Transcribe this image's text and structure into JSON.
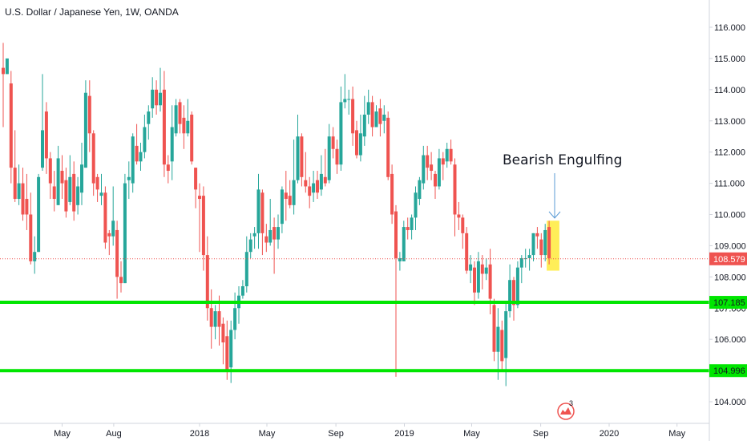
{
  "header": {
    "title": "U.S. Dollar / Japanese Yen, 1W, OANDA"
  },
  "colors": {
    "bull": "#26a69a",
    "bear": "#ef5350",
    "support": "#00e600",
    "highlight": "#ffeb3b",
    "current": "#ef5350",
    "grid": "#e0e3eb"
  },
  "annotations": {
    "pattern_label": "Bearish Engulfing",
    "logo_badge": "3"
  },
  "chart_data": {
    "type": "candlestick",
    "title": "U.S. Dollar / Japanese Yen, 1W, OANDA",
    "xlabel": "",
    "ylabel": "",
    "ylim": [
      103.3,
      116.8
    ],
    "grid": false,
    "y_ticks": [
      "116.000",
      "115.000",
      "114.000",
      "113.000",
      "112.000",
      "111.000",
      "110.000",
      "109.000",
      "108.000",
      "107.000",
      "106.000",
      "105.000",
      "104.000"
    ],
    "x_ticks": [
      {
        "label": "May",
        "date": "2017-05"
      },
      {
        "label": "Aug",
        "date": "2017-08"
      },
      {
        "label": "2018",
        "date": "2018-01"
      },
      {
        "label": "May",
        "date": "2018-05"
      },
      {
        "label": "Sep",
        "date": "2018-09"
      },
      {
        "label": "2019",
        "date": "2019-01"
      },
      {
        "label": "May",
        "date": "2019-05"
      },
      {
        "label": "Sep",
        "date": "2019-09"
      },
      {
        "label": "2020",
        "date": "2020-01"
      },
      {
        "label": "May",
        "date": "2020-05"
      }
    ],
    "current_price": {
      "value": 108.579,
      "label": "108.579"
    },
    "support_lines": [
      {
        "value": 107.185,
        "label": "107.185"
      },
      {
        "value": 104.996,
        "label": "104.996"
      }
    ],
    "highlight_box": {
      "from_index": 139,
      "to_index": 141,
      "low": 108.2,
      "high": 109.8
    },
    "candles": [
      [
        114.7,
        114.5,
        115.5,
        112.8
      ],
      [
        114.5,
        115.0,
        115.0,
        114.5
      ],
      [
        114.2,
        111.5,
        114.6,
        111.0
      ],
      [
        111.5,
        110.5,
        112.7,
        110.4
      ],
      [
        110.5,
        111.0,
        111.6,
        110.3
      ],
      [
        111.0,
        110.0,
        111.5,
        109.8
      ],
      [
        110.5,
        110.0,
        111.3,
        109.5
      ],
      [
        110.0,
        108.5,
        110.7,
        108.4
      ],
      [
        108.5,
        108.8,
        109.3,
        108.1
      ],
      [
        108.8,
        111.2,
        111.3,
        108.8
      ],
      [
        111.5,
        112.7,
        114.5,
        111.4
      ],
      [
        113.3,
        111.8,
        113.6,
        111.3
      ],
      [
        111.8,
        111.0,
        112.0,
        110.5
      ],
      [
        110.9,
        110.5,
        111.4,
        110.1
      ],
      [
        110.3,
        111.8,
        112.2,
        110.3
      ],
      [
        111.4,
        111.0,
        111.9,
        110.5
      ],
      [
        111.1,
        110.1,
        111.5,
        109.9
      ],
      [
        110.4,
        111.2,
        111.9,
        110.3
      ],
      [
        111.3,
        110.1,
        111.7,
        109.8
      ],
      [
        110.3,
        110.9,
        111.2,
        110.0
      ],
      [
        110.7,
        111.6,
        112.3,
        110.3
      ],
      [
        111.5,
        113.9,
        114.3,
        111.5
      ],
      [
        113.8,
        112.6,
        114.3,
        112.0
      ],
      [
        112.6,
        111.0,
        112.7,
        110.6
      ],
      [
        111.2,
        110.8,
        111.3,
        110.4
      ],
      [
        110.6,
        110.7,
        111.3,
        110.3
      ],
      [
        110.7,
        109.1,
        110.9,
        108.9
      ],
      [
        109.4,
        109.3,
        109.5,
        108.7
      ],
      [
        109.3,
        109.8,
        110.9,
        109.0
      ],
      [
        109.5,
        108.0,
        109.8,
        107.3
      ],
      [
        108.0,
        107.8,
        108.5,
        107.5
      ],
      [
        107.8,
        111.0,
        111.3,
        107.8
      ],
      [
        111.1,
        111.2,
        111.7,
        110.5
      ],
      [
        111.0,
        112.5,
        112.6,
        110.7
      ],
      [
        112.2,
        111.7,
        112.9,
        111.6
      ],
      [
        111.7,
        112.0,
        112.3,
        111.4
      ],
      [
        112.0,
        112.8,
        113.2,
        111.8
      ],
      [
        112.9,
        113.3,
        113.5,
        112.4
      ],
      [
        113.4,
        114.0,
        114.4,
        113.1
      ],
      [
        114.0,
        113.5,
        114.3,
        113.2
      ],
      [
        113.5,
        113.9,
        114.7,
        113.3
      ],
      [
        114.0,
        111.6,
        114.6,
        111.2
      ],
      [
        111.6,
        111.4,
        111.9,
        111.0
      ],
      [
        111.7,
        112.8,
        113.5,
        111.1
      ],
      [
        112.6,
        113.5,
        113.7,
        112.5
      ],
      [
        113.6,
        112.9,
        113.7,
        112.6
      ],
      [
        113.1,
        112.6,
        113.5,
        112.1
      ],
      [
        112.6,
        113.0,
        113.7,
        112.5
      ],
      [
        113.2,
        111.7,
        113.3,
        111.6
      ],
      [
        111.5,
        110.8,
        111.5,
        110.2
      ],
      [
        110.6,
        110.5,
        111.0,
        108.8
      ],
      [
        110.6,
        108.7,
        110.9,
        108.2
      ],
      [
        108.7,
        107.0,
        109.3,
        106.6
      ],
      [
        107.0,
        106.4,
        107.6,
        105.7
      ],
      [
        106.4,
        106.9,
        107.1,
        106.0
      ],
      [
        106.9,
        106.4,
        107.4,
        105.8
      ],
      [
        106.5,
        105.9,
        106.7,
        105.2
      ],
      [
        106.1,
        105.0,
        106.6,
        104.7
      ],
      [
        105.1,
        106.3,
        106.6,
        104.6
      ],
      [
        106.3,
        107.0,
        107.5,
        106.0
      ],
      [
        107.0,
        107.4,
        107.7,
        106.5
      ],
      [
        107.4,
        107.7,
        107.9,
        107.3
      ],
      [
        107.7,
        108.8,
        109.3,
        107.5
      ],
      [
        108.8,
        109.2,
        109.4,
        108.6
      ],
      [
        109.3,
        109.4,
        109.6,
        108.9
      ],
      [
        109.4,
        110.8,
        111.3,
        108.9
      ],
      [
        110.7,
        109.4,
        110.8,
        108.7
      ],
      [
        109.3,
        109.1,
        109.7,
        108.8
      ],
      [
        109.1,
        109.5,
        110.5,
        109.0
      ],
      [
        109.6,
        109.2,
        109.9,
        108.1
      ],
      [
        109.2,
        109.6,
        110.0,
        108.9
      ],
      [
        109.7,
        110.8,
        110.9,
        109.4
      ],
      [
        110.7,
        110.5,
        111.4,
        109.8
      ],
      [
        110.6,
        110.3,
        111.1,
        110.2
      ],
      [
        110.3,
        111.1,
        112.4,
        110.0
      ],
      [
        111.1,
        112.5,
        113.2,
        111.0
      ],
      [
        112.5,
        111.2,
        112.6,
        110.9
      ],
      [
        111.1,
        110.9,
        112.0,
        110.7
      ],
      [
        110.9,
        110.6,
        111.2,
        110.2
      ],
      [
        110.7,
        111.0,
        111.4,
        110.4
      ],
      [
        111.1,
        110.7,
        111.4,
        110.5
      ],
      [
        110.8,
        111.3,
        111.9,
        110.6
      ],
      [
        111.2,
        111.0,
        112.1,
        110.9
      ],
      [
        111.1,
        112.5,
        112.9,
        111.0
      ],
      [
        112.5,
        112.1,
        112.8,
        111.8
      ],
      [
        112.1,
        111.6,
        112.4,
        111.3
      ],
      [
        111.6,
        113.6,
        114.1,
        111.4
      ],
      [
        113.6,
        113.7,
        114.5,
        113.4
      ],
      [
        113.7,
        113.7,
        114.0,
        113.2
      ],
      [
        113.7,
        112.6,
        114.1,
        112.2
      ],
      [
        112.7,
        111.9,
        113.0,
        111.8
      ],
      [
        111.9,
        112.6,
        113.2,
        111.7
      ],
      [
        112.5,
        113.2,
        113.8,
        112.2
      ],
      [
        113.2,
        113.6,
        114.0,
        112.9
      ],
      [
        113.6,
        112.8,
        113.8,
        112.5
      ],
      [
        112.8,
        113.3,
        113.5,
        112.8
      ],
      [
        113.4,
        112.9,
        113.7,
        112.5
      ],
      [
        113.0,
        113.2,
        113.5,
        112.6
      ],
      [
        113.1,
        111.2,
        113.3,
        111.1
      ],
      [
        111.3,
        110.0,
        111.6,
        109.7
      ],
      [
        110.1,
        108.6,
        110.3,
        104.8
      ],
      [
        108.5,
        108.6,
        108.8,
        108.2
      ],
      [
        108.5,
        109.6,
        109.8,
        108.5
      ],
      [
        109.6,
        109.5,
        109.9,
        109.2
      ],
      [
        109.5,
        109.9,
        110.0,
        109.2
      ],
      [
        109.9,
        110.7,
        110.9,
        109.5
      ],
      [
        110.5,
        111.1,
        111.2,
        110.3
      ],
      [
        111.0,
        111.9,
        112.2,
        110.8
      ],
      [
        111.9,
        111.5,
        112.2,
        111.1
      ],
      [
        111.6,
        111.4,
        112.0,
        111.1
      ],
      [
        111.3,
        110.9,
        111.4,
        110.5
      ],
      [
        110.9,
        111.8,
        112.1,
        110.8
      ],
      [
        111.8,
        111.6,
        112.0,
        111.1
      ],
      [
        111.7,
        112.1,
        112.3,
        111.5
      ],
      [
        112.1,
        111.7,
        112.4,
        111.6
      ],
      [
        111.6,
        110.0,
        111.8,
        109.3
      ],
      [
        110.0,
        109.9,
        110.4,
        109.5
      ],
      [
        109.9,
        109.4,
        110.0,
        108.9
      ],
      [
        109.4,
        108.2,
        109.6,
        108.1
      ],
      [
        108.2,
        108.4,
        108.7,
        107.8
      ],
      [
        108.3,
        107.5,
        108.5,
        107.1
      ],
      [
        107.5,
        108.5,
        108.8,
        107.3
      ],
      [
        108.4,
        108.1,
        108.7,
        107.6
      ],
      [
        108.1,
        108.3,
        108.6,
        107.9
      ],
      [
        108.4,
        107.3,
        108.9,
        106.8
      ],
      [
        107.1,
        105.6,
        107.3,
        105.3
      ],
      [
        105.6,
        106.4,
        107.0,
        104.7
      ],
      [
        106.3,
        105.3,
        106.6,
        105.0
      ],
      [
        105.4,
        106.9,
        107.2,
        104.5
      ],
      [
        106.9,
        107.9,
        108.4,
        106.7
      ],
      [
        107.9,
        107.1,
        108.0,
        106.6
      ],
      [
        107.1,
        108.3,
        108.5,
        107.0
      ],
      [
        108.3,
        108.6,
        108.7,
        107.8
      ],
      [
        108.6,
        108.6,
        108.9,
        108.3
      ],
      [
        108.6,
        108.7,
        108.9,
        108.2
      ],
      [
        108.7,
        109.4,
        109.4,
        108.5
      ],
      [
        109.4,
        109.3,
        109.6,
        108.9
      ],
      [
        109.2,
        108.7,
        109.4,
        108.3
      ],
      [
        108.7,
        109.5,
        109.7,
        108.5
      ],
      [
        109.6,
        108.6,
        109.8,
        108.4
      ]
    ]
  }
}
